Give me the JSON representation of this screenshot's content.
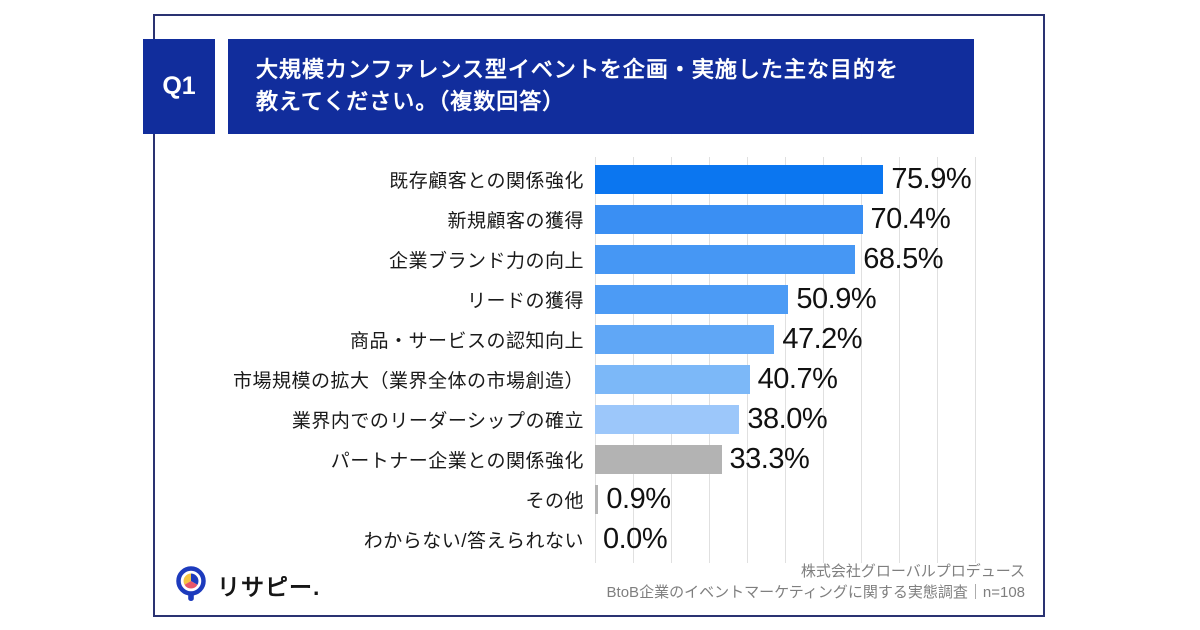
{
  "header": {
    "badge": "Q1",
    "title_line1": "大規模カンファレンス型イベントを企画・実施した主な目的を",
    "title_line2": "教えてください。（複数回答）",
    "box_color": "#112d9c"
  },
  "chart_data": {
    "type": "bar",
    "orientation": "horizontal",
    "title": "大規模カンファレンス型イベントを企画・実施した主な目的を教えてください。（複数回答）",
    "categories": [
      "既存顧客との関係強化",
      "新規顧客の獲得",
      "企業ブランド力の向上",
      "リードの獲得",
      "商品・サービスの認知向上",
      "市場規模の拡大（業界全体の市場創造）",
      "業界内でのリーダーシップの確立",
      "パートナー企業との関係強化",
      "その他",
      "わからない/答えられない"
    ],
    "values": [
      75.9,
      70.4,
      68.5,
      50.9,
      47.2,
      40.7,
      38.0,
      33.3,
      0.9,
      0.0
    ],
    "value_labels": [
      "75.9%",
      "70.4%",
      "68.5%",
      "50.9%",
      "47.2%",
      "40.7%",
      "38.0%",
      "33.3%",
      "0.9%",
      "0.0%"
    ],
    "bar_colors": [
      "#0b76f0",
      "#3a8ff3",
      "#4697f4",
      "#4c9bf5",
      "#60a7f6",
      "#7cb8f8",
      "#9cc7fa",
      "#b3b3b3",
      "#b3b3b3",
      "#b3b3b3"
    ],
    "xlim": [
      0,
      100
    ],
    "gridline_interval_percent": 10,
    "grid": true,
    "gridline_color": "#e0e0e0",
    "n": 108
  },
  "footer": {
    "logo_text": "リサピー.",
    "source_line1": "株式会社グローバルプロデュース",
    "source_line2": "BtoB企業のイベントマーケティングに関する実態調査｜n=108"
  },
  "icons": {
    "logo_ring_color": "#1d3bbd",
    "logo_pie_colors": [
      "#f5c542",
      "#e8566a",
      "#1d3bbd"
    ]
  }
}
